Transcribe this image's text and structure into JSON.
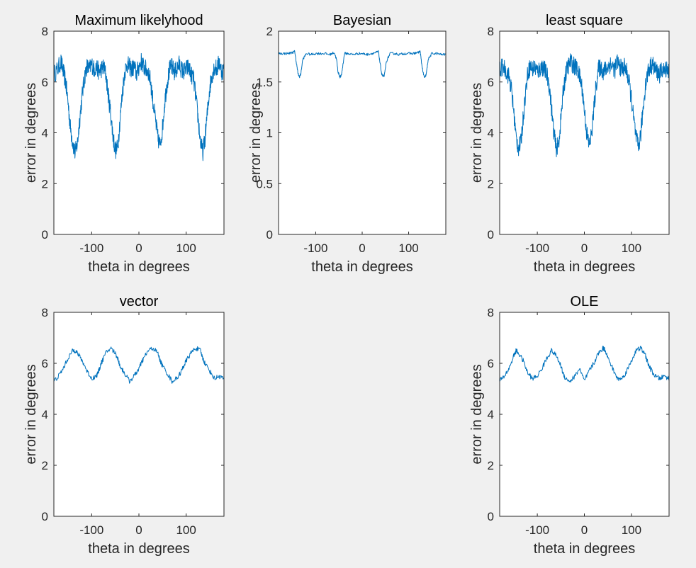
{
  "figure": {
    "background": "#f0f0f0",
    "axes_color": "#262626",
    "line_color": "#0072bd"
  },
  "chart_data": [
    {
      "type": "line",
      "title": "Maximum likelyhood",
      "xlabel": "theta in degrees",
      "ylabel": "error in degrees",
      "xlim": [
        -180,
        180
      ],
      "ylim": [
        0,
        8
      ],
      "xticks": [
        -100,
        0,
        100
      ],
      "yticks": [
        0,
        2,
        4,
        6,
        8
      ],
      "xtick_labels": [
        "-100",
        "0",
        "100"
      ],
      "ytick_labels": [
        "0",
        "2",
        "4",
        "6",
        "8"
      ],
      "grid": false,
      "series": [
        {
          "x": [
            -180,
            -172,
            -165,
            -160,
            -155,
            -150,
            -145,
            -140,
            -135,
            -130,
            -125,
            -120,
            -115,
            -110,
            -105,
            -100,
            -95,
            -90,
            -85,
            -80,
            -75,
            -70,
            -65,
            -60,
            -55,
            -50,
            -45,
            -40,
            -35,
            -30,
            -25,
            -20,
            -15,
            -10,
            -5,
            0,
            5,
            10,
            15,
            20,
            25,
            30,
            35,
            40,
            45,
            50,
            55,
            60,
            65,
            70,
            75,
            80,
            85,
            90,
            95,
            100,
            105,
            110,
            115,
            120,
            125,
            130,
            135,
            140,
            145,
            150,
            155,
            160,
            165,
            170,
            175,
            180
          ],
          "y": [
            6.3,
            6.5,
            6.8,
            6.4,
            6.0,
            5.2,
            4.2,
            3.6,
            3.2,
            3.6,
            4.6,
            5.5,
            6.2,
            6.6,
            6.5,
            6.7,
            6.5,
            6.6,
            6.4,
            6.5,
            6.6,
            6.3,
            5.5,
            4.8,
            3.9,
            3.3,
            3.4,
            4.5,
            5.6,
            6.4,
            6.7,
            6.6,
            6.5,
            6.6,
            6.3,
            6.6,
            6.8,
            6.6,
            6.5,
            6.4,
            6.0,
            5.2,
            4.5,
            3.8,
            3.5,
            4.2,
            5.3,
            6.0,
            6.5,
            6.6,
            6.4,
            6.5,
            6.7,
            6.5,
            6.4,
            6.5,
            6.6,
            6.3,
            6.2,
            5.5,
            4.6,
            3.7,
            3.2,
            3.8,
            4.8,
            5.8,
            6.3,
            6.6,
            6.5,
            6.8,
            6.4,
            6.5
          ]
        }
      ]
    },
    {
      "type": "line",
      "title": "Bayesian",
      "xlabel": "theta in degrees",
      "ylabel": "error in degrees",
      "xlim": [
        -180,
        180
      ],
      "ylim": [
        0,
        2
      ],
      "xticks": [
        -100,
        0,
        100
      ],
      "yticks": [
        0,
        0.5,
        1,
        1.5,
        2
      ],
      "xtick_labels": [
        "-100",
        "0",
        "100"
      ],
      "ytick_labels": [
        "0",
        "0.5",
        "1",
        "1.5",
        "2"
      ],
      "grid": false,
      "series": [
        {
          "x": [
            -180,
            -170,
            -160,
            -150,
            -145,
            -142,
            -138,
            -135,
            -132,
            -128,
            -120,
            -110,
            -100,
            -90,
            -80,
            -70,
            -60,
            -55,
            -52,
            -48,
            -45,
            -42,
            -38,
            -30,
            -20,
            -10,
            0,
            10,
            20,
            30,
            35,
            38,
            42,
            45,
            48,
            52,
            60,
            70,
            80,
            90,
            100,
            110,
            120,
            125,
            128,
            132,
            135,
            138,
            142,
            150,
            160,
            170,
            180
          ],
          "y": [
            1.78,
            1.78,
            1.78,
            1.79,
            1.8,
            1.7,
            1.58,
            1.55,
            1.58,
            1.72,
            1.78,
            1.77,
            1.78,
            1.78,
            1.78,
            1.77,
            1.79,
            1.72,
            1.6,
            1.55,
            1.56,
            1.65,
            1.78,
            1.78,
            1.77,
            1.78,
            1.78,
            1.77,
            1.78,
            1.79,
            1.8,
            1.7,
            1.58,
            1.55,
            1.57,
            1.7,
            1.78,
            1.78,
            1.77,
            1.78,
            1.78,
            1.78,
            1.79,
            1.8,
            1.68,
            1.57,
            1.54,
            1.58,
            1.72,
            1.78,
            1.78,
            1.77,
            1.77
          ]
        }
      ]
    },
    {
      "type": "line",
      "title": "least square",
      "xlabel": "theta in degrees",
      "ylabel": "error in degrees",
      "xlim": [
        -180,
        180
      ],
      "ylim": [
        0,
        8
      ],
      "xticks": [
        -100,
        0,
        100
      ],
      "yticks": [
        0,
        2,
        4,
        6,
        8
      ],
      "xtick_labels": [
        "-100",
        "0",
        "100"
      ],
      "ytick_labels": [
        "0",
        "2",
        "4",
        "6",
        "8"
      ],
      "grid": false,
      "series": [
        {
          "x": [
            -180,
            -172,
            -165,
            -160,
            -155,
            -150,
            -145,
            -140,
            -135,
            -130,
            -125,
            -120,
            -115,
            -110,
            -105,
            -100,
            -95,
            -90,
            -85,
            -80,
            -75,
            -70,
            -65,
            -60,
            -55,
            -50,
            -45,
            -40,
            -35,
            -30,
            -25,
            -20,
            -15,
            -10,
            -5,
            0,
            5,
            10,
            15,
            20,
            25,
            30,
            35,
            40,
            45,
            50,
            55,
            60,
            65,
            70,
            75,
            80,
            85,
            90,
            95,
            100,
            105,
            110,
            115,
            120,
            125,
            130,
            135,
            140,
            145,
            150,
            155,
            160,
            165,
            170,
            175,
            180
          ],
          "y": [
            6.5,
            6.6,
            6.4,
            6.2,
            5.7,
            4.8,
            3.8,
            3.4,
            3.6,
            4.6,
            5.6,
            6.4,
            6.6,
            6.5,
            6.6,
            6.4,
            6.5,
            6.6,
            6.5,
            6.3,
            5.9,
            5.0,
            4.0,
            3.4,
            3.5,
            4.5,
            5.6,
            6.3,
            6.6,
            6.8,
            6.7,
            6.6,
            6.5,
            6.2,
            5.8,
            4.9,
            4.0,
            3.5,
            3.9,
            4.9,
            5.9,
            6.5,
            6.6,
            6.4,
            6.5,
            6.6,
            6.7,
            6.6,
            6.5,
            6.8,
            6.6,
            6.5,
            6.6,
            6.4,
            6.0,
            5.3,
            4.5,
            3.8,
            3.4,
            4.0,
            5.0,
            5.9,
            6.4,
            6.6,
            6.7,
            6.5,
            6.4,
            6.3,
            6.5,
            6.4,
            6.6,
            6.4
          ]
        }
      ]
    },
    {
      "type": "line",
      "title": "vector",
      "xlabel": "theta in degrees",
      "ylabel": "error in degrees",
      "xlim": [
        -180,
        180
      ],
      "ylim": [
        0,
        8
      ],
      "xticks": [
        -100,
        0,
        100
      ],
      "yticks": [
        0,
        2,
        4,
        6,
        8
      ],
      "xtick_labels": [
        "-100",
        "0",
        "100"
      ],
      "ytick_labels": [
        "0",
        "2",
        "4",
        "6",
        "8"
      ],
      "grid": false,
      "series": [
        {
          "x": [
            -180,
            -170,
            -160,
            -150,
            -140,
            -135,
            -130,
            -120,
            -110,
            -100,
            -90,
            -85,
            -80,
            -70,
            -60,
            -50,
            -45,
            -40,
            -30,
            -20,
            -10,
            0,
            5,
            10,
            20,
            30,
            40,
            45,
            50,
            60,
            70,
            80,
            90,
            95,
            100,
            110,
            120,
            130,
            135,
            140,
            150,
            160,
            170,
            180
          ],
          "y": [
            5.3,
            5.5,
            5.8,
            6.2,
            6.5,
            6.5,
            6.4,
            6.1,
            5.7,
            5.4,
            5.5,
            5.7,
            6.0,
            6.4,
            6.6,
            6.4,
            6.2,
            5.9,
            5.6,
            5.3,
            5.5,
            5.8,
            6.0,
            6.2,
            6.5,
            6.6,
            6.4,
            6.1,
            5.9,
            5.6,
            5.3,
            5.4,
            5.7,
            5.9,
            6.1,
            6.4,
            6.6,
            6.5,
            6.2,
            6.0,
            5.7,
            5.4,
            5.5,
            5.4
          ]
        }
      ]
    },
    {
      "type": "line",
      "title": "OLE",
      "xlabel": "theta in degrees",
      "ylabel": "error in degrees",
      "xlim": [
        -180,
        180
      ],
      "ylim": [
        0,
        8
      ],
      "xticks": [
        -100,
        0,
        100
      ],
      "yticks": [
        0,
        2,
        4,
        6,
        8
      ],
      "xtick_labels": [
        "-100",
        "0",
        "100"
      ],
      "ytick_labels": [
        "0",
        "2",
        "4",
        "6",
        "8"
      ],
      "grid": false,
      "series": [
        {
          "x": [
            -180,
            -170,
            -160,
            -150,
            -145,
            -140,
            -130,
            -120,
            -110,
            -100,
            -90,
            -80,
            -70,
            -60,
            -50,
            -45,
            -40,
            -30,
            -20,
            -10,
            0,
            10,
            20,
            30,
            40,
            45,
            50,
            60,
            70,
            80,
            90,
            100,
            110,
            120,
            130,
            135,
            140,
            150,
            160,
            170,
            180
          ],
          "y": [
            5.3,
            5.5,
            5.8,
            6.3,
            6.5,
            6.4,
            6.1,
            5.6,
            5.4,
            5.5,
            5.8,
            6.2,
            6.5,
            6.3,
            5.9,
            5.6,
            5.4,
            5.3,
            5.5,
            5.8,
            5.3,
            5.7,
            6.0,
            6.4,
            6.6,
            6.5,
            6.2,
            5.8,
            5.4,
            5.4,
            5.7,
            6.1,
            6.5,
            6.6,
            6.3,
            6.0,
            5.8,
            5.5,
            5.4,
            5.5,
            5.4
          ]
        }
      ]
    }
  ]
}
